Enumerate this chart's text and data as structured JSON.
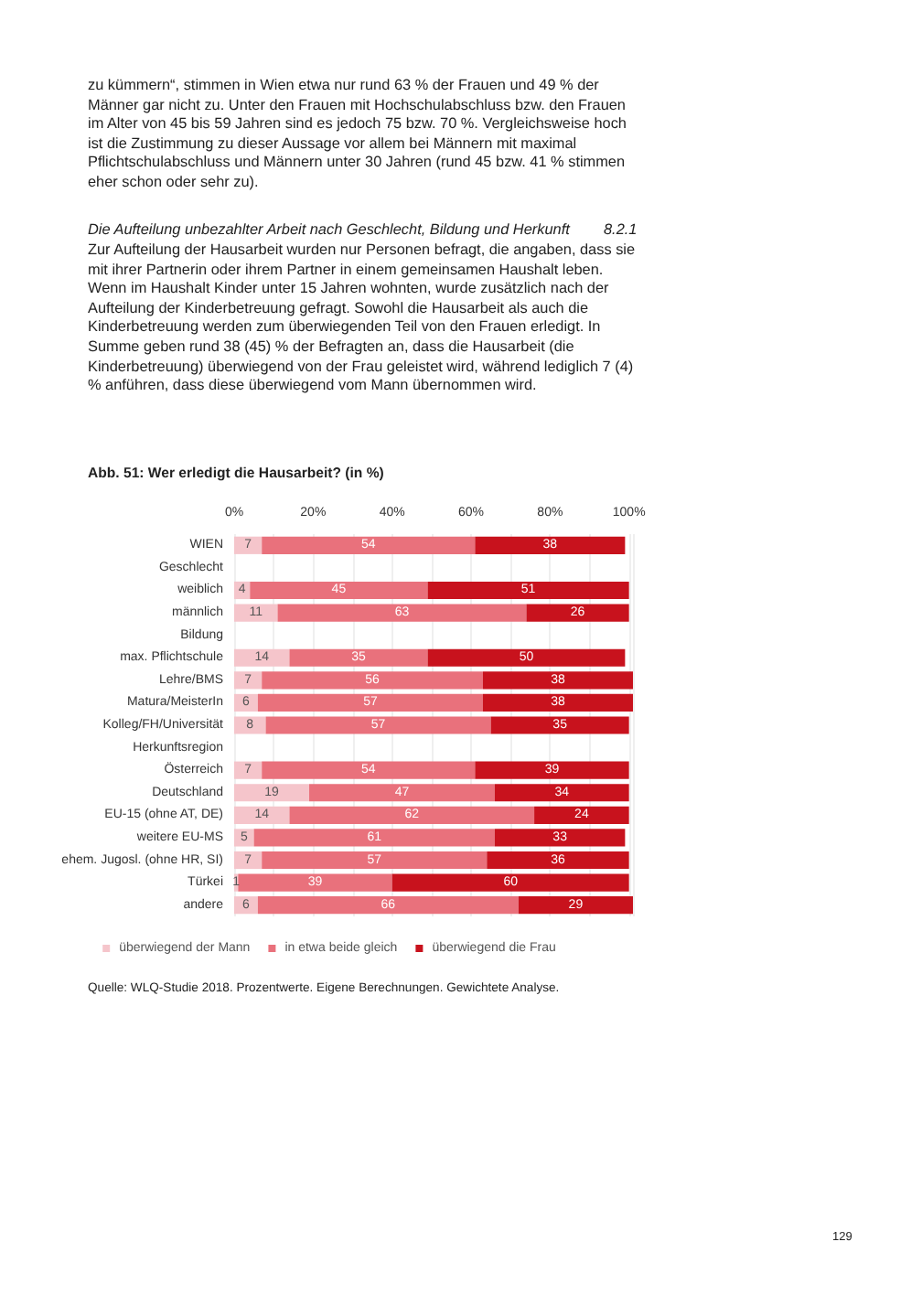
{
  "chart_data": {
    "type": "bar",
    "orientation": "horizontal",
    "stacked": true,
    "title": "Abb. 51: Wer erledigt die Hausarbeit? (in %)",
    "annotations": [
      "zu kümmern“, stimmen in Wien etwa nur rund 63 % der Frauen und 49 % der Männer gar nicht zu. Unter den Frauen mit Hochschulabschluss bzw. den Frauen im Alter von 45 bis 59 Jahren sind es jedoch 75 bzw. 70 %. Vergleichsweise hoch ist die Zustimmung zu dieser Aussage vor allem bei Männern mit maximal Pflichtschulabschluss und Männern unter 30 Jahren (rund 45 bzw. 41 % stimmen eher schon oder sehr zu).",
      "Die Aufteilung unbezahlter Arbeit nach Geschlecht, Bildung und Herkunft",
      "8.2.1",
      "Zur Aufteilung der Hausarbeit wurden nur Personen befragt, die angaben, dass sie mit ihrer Partnerin oder ihrem Partner in einem gemeinsamen Haushalt leben. Wenn im Haushalt Kinder unter 15 Jahren wohnten, wurde zusätzlich nach der Aufteilung der Kinderbetreuung gefragt. Sowohl die Hausarbeit als auch die Kinderbetreuung werden zum überwiegenden Teil von den Frauen erledigt. In Summe geben rund 38 (45) % der Befragten an, dass die Hausarbeit (die Kinderbetreuung) überwiegend von der Frau geleistet wird, während lediglich 7 (4) % anführen, dass diese überwiegend vom Mann übernommen wird.",
      "Quelle: WLQ-Studie 2018. Prozentwerte. Eigene Berechnungen. Gewichtete Analyse.",
      "129"
    ],
    "categories": [
      "WIEN",
      "Geschlecht",
      "weiblich",
      "männlich",
      "Bildung",
      "max. Pflichtschule",
      "Lehre/BMS",
      "Matura/MeisterIn",
      "Kolleg/FH/Universität",
      "Herkunftsregion",
      "Österreich",
      "Deutschland",
      "EU-15 (ohne AT, DE)",
      "weitere EU-MS",
      "ehem. Jugosl. (ohne HR, SI)",
      "Türkei",
      "andere"
    ],
    "series": [
      {
        "name": "überwiegend der Mann",
        "color": "#f5c5cb",
        "values": [
          7,
          null,
          4,
          11,
          null,
          14,
          7,
          6,
          8,
          null,
          7,
          19,
          14,
          5,
          7,
          1,
          6
        ]
      },
      {
        "name": "in etwa beide gleich",
        "color": "#e9717c",
        "values": [
          54,
          null,
          45,
          63,
          null,
          35,
          56,
          57,
          57,
          null,
          54,
          47,
          62,
          61,
          57,
          39,
          66
        ]
      },
      {
        "name": "überwiegend die Frau",
        "color": "#c8121d",
        "values": [
          38,
          null,
          51,
          26,
          null,
          50,
          38,
          38,
          35,
          null,
          39,
          34,
          24,
          33,
          36,
          60,
          29
        ]
      }
    ],
    "xlim": [
      0,
      101
    ],
    "xticks": [
      {
        "value": 0,
        "label": "0%"
      },
      {
        "value": 10,
        "label": null
      },
      {
        "value": 20,
        "label": "20%"
      },
      {
        "value": 30,
        "label": null
      },
      {
        "value": 40,
        "label": "40%"
      },
      {
        "value": 50,
        "label": null
      },
      {
        "value": 60,
        "label": "60%"
      },
      {
        "value": 70,
        "label": null
      },
      {
        "value": 80,
        "label": "80%"
      },
      {
        "value": 90,
        "label": null
      },
      {
        "value": 100,
        "label": "100%"
      }
    ],
    "grid": "x",
    "legend": "bottom",
    "data_labels": true
  }
}
